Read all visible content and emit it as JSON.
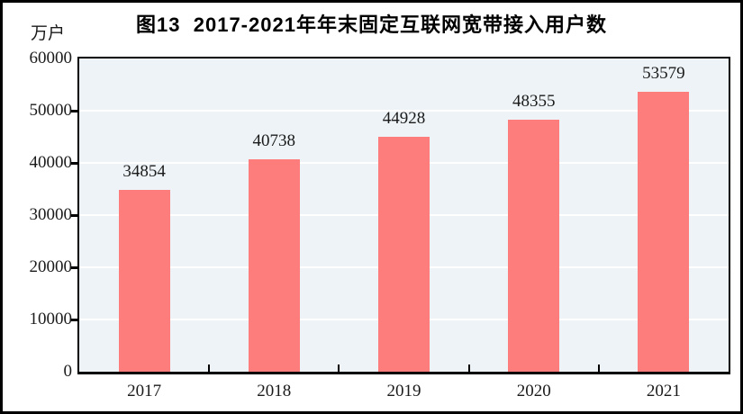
{
  "chart_data": {
    "type": "bar",
    "title": "图13  2017-2021年年末固定互联网宽带接入用户数",
    "unit": "万户",
    "categories": [
      "2017",
      "2018",
      "2019",
      "2020",
      "2021"
    ],
    "values": [
      34854,
      40738,
      44928,
      48355,
      53579
    ],
    "value_labels": [
      "34854",
      "40738",
      "44928",
      "48355",
      "53579"
    ],
    "ylim": [
      0,
      60000
    ],
    "ytick_interval": 10000,
    "yticks": [
      0,
      10000,
      20000,
      30000,
      40000,
      50000,
      60000
    ],
    "ytick_labels": [
      "0",
      "10000",
      "20000",
      "30000",
      "40000",
      "50000",
      "60000"
    ],
    "grid": true,
    "legend_position": "none",
    "colors": {
      "bar": "#fd7d7d",
      "plot_background": "#edf3f6",
      "gridline": "#ffffff",
      "axis": "#000000",
      "text": "#1a1a1a"
    }
  }
}
